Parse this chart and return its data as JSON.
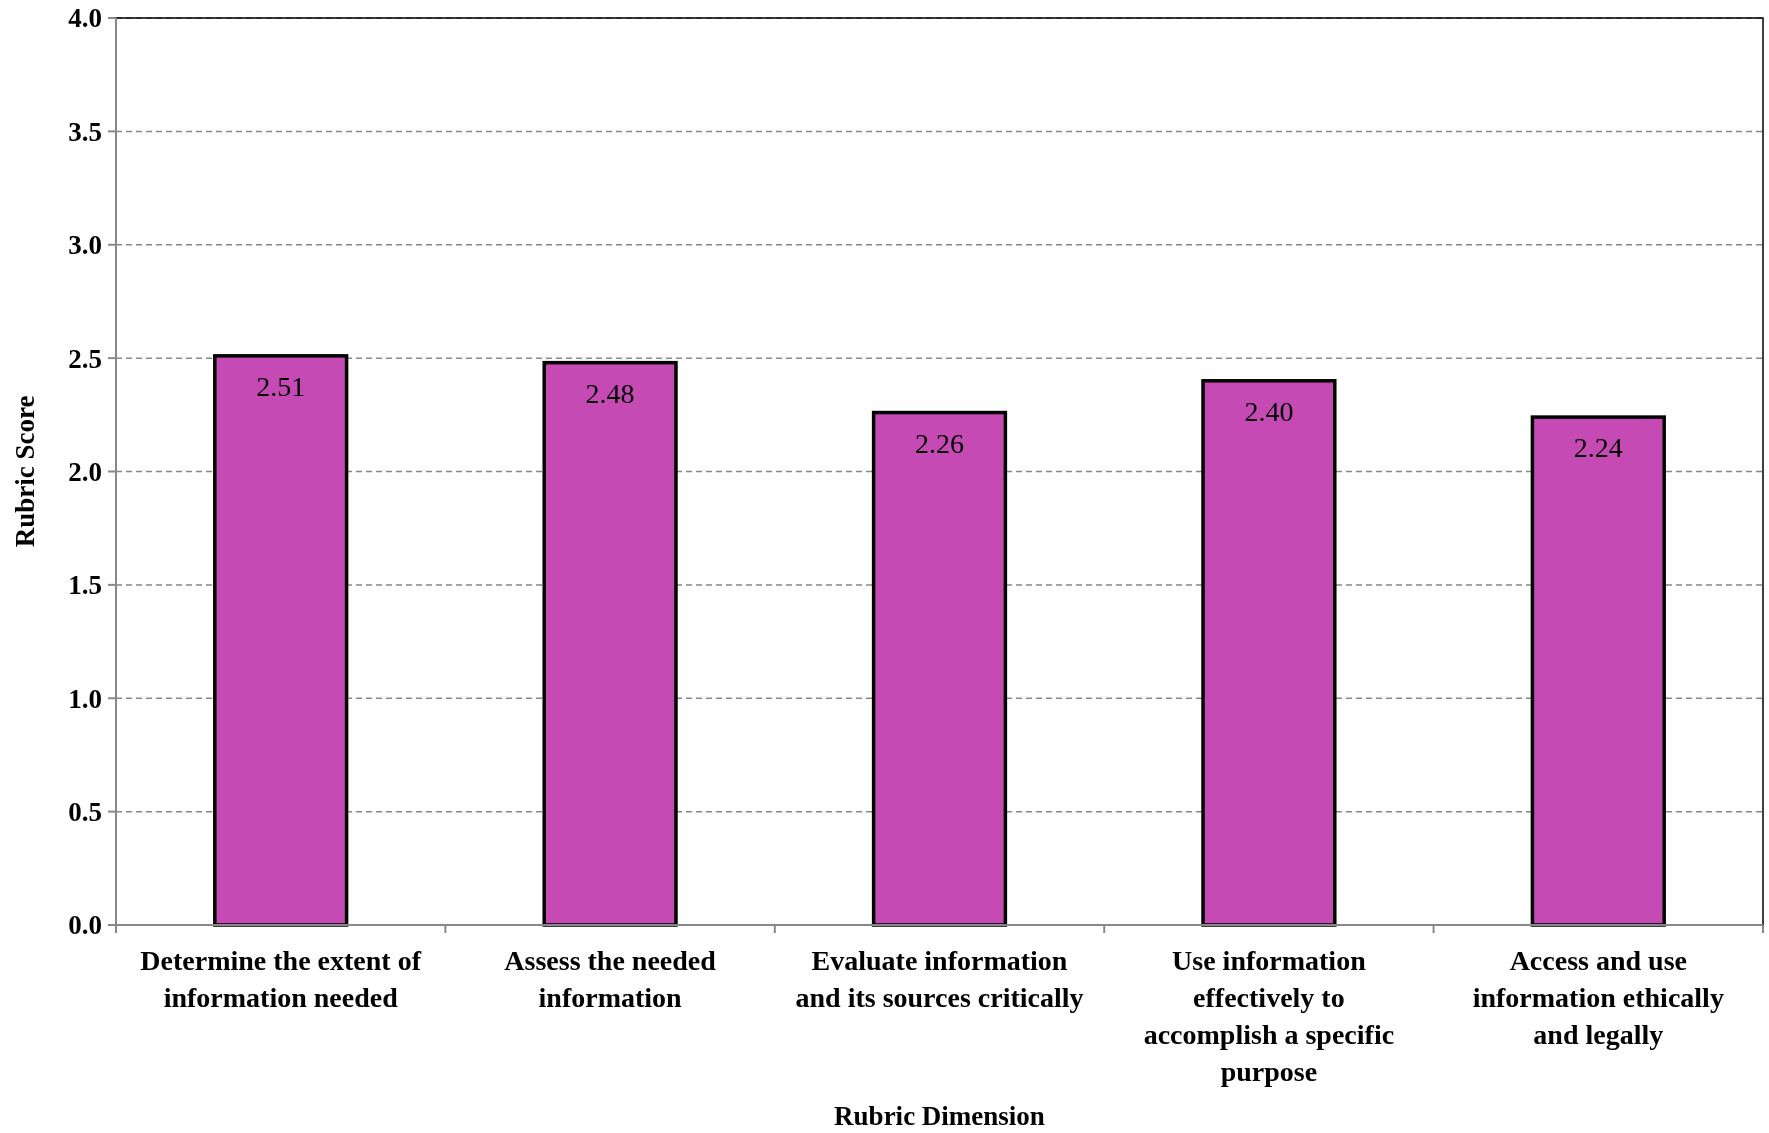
{
  "chart_data": {
    "type": "bar",
    "xlabel": "Rubric Dimension",
    "ylabel": "Rubric Score",
    "categories": [
      "Determine the extent of information needed",
      "Assess the needed information",
      "Evaluate information and its sources critically",
      "Use information effectively to accomplish a specific purpose",
      "Access and use information ethically and legally"
    ],
    "values": [
      2.51,
      2.48,
      2.26,
      2.4,
      2.24
    ],
    "color": "#c54ab4",
    "data_labels": true,
    "value_labels": [
      "2.51",
      "2.48",
      "2.26",
      "2.40",
      "2.24"
    ],
    "ylim": [
      0,
      4
    ],
    "yticks": [
      {
        "value": 0,
        "label": "0.0"
      },
      {
        "value": 0.5,
        "label": "0.5"
      },
      {
        "value": 1,
        "label": "1.0"
      },
      {
        "value": 1.5,
        "label": "1.5"
      },
      {
        "value": 2,
        "label": "2.0"
      },
      {
        "value": 2.5,
        "label": "2.5"
      },
      {
        "value": 3,
        "label": "3.0"
      },
      {
        "value": 3.5,
        "label": "3.5"
      },
      {
        "value": 4,
        "label": "4.0"
      }
    ],
    "grid": "y"
  }
}
